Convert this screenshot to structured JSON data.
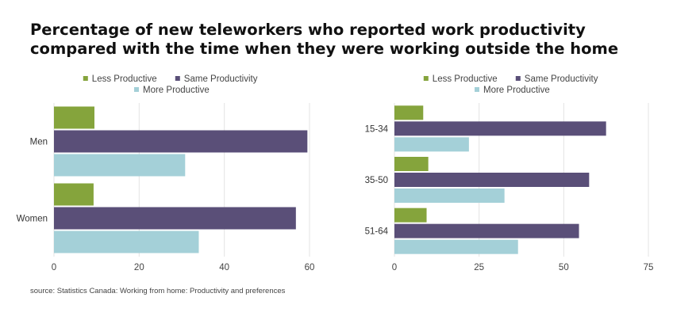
{
  "title": "Percentage of new teleworkers who reported work productivity compared with the time when they were working outside the home",
  "source": "source: Statistics Canada: Working from home: Productivity and preferences",
  "chart_data": [
    {
      "type": "bar",
      "orientation": "horizontal",
      "categories": [
        "Men",
        "Women"
      ],
      "series": [
        {
          "name": "Less Productive",
          "color": "#85a43c",
          "values": [
            9.5,
            9.3
          ]
        },
        {
          "name": "Same Productivity",
          "color": "#5a4f78",
          "values": [
            59.5,
            56.8
          ]
        },
        {
          "name": "More Productive",
          "color": "#a4d0d8",
          "values": [
            30.8,
            34.0
          ]
        }
      ],
      "xlim": [
        0,
        60
      ],
      "ticks": [
        0,
        20,
        40,
        60
      ],
      "grid": true,
      "legend": "top-center"
    },
    {
      "type": "bar",
      "orientation": "horizontal",
      "categories": [
        "15-34",
        "35-50",
        "51-64"
      ],
      "series": [
        {
          "name": "Less Productive",
          "color": "#85a43c",
          "values": [
            8.5,
            10.0,
            9.5
          ]
        },
        {
          "name": "Same Productivity",
          "color": "#5a4f78",
          "values": [
            62.5,
            57.5,
            54.5
          ]
        },
        {
          "name": "More Productive",
          "color": "#a4d0d8",
          "values": [
            22.0,
            32.5,
            36.5
          ]
        }
      ],
      "xlim": [
        0,
        75
      ],
      "ticks": [
        0,
        25,
        50,
        75
      ],
      "grid": true,
      "legend": "top-center"
    }
  ]
}
